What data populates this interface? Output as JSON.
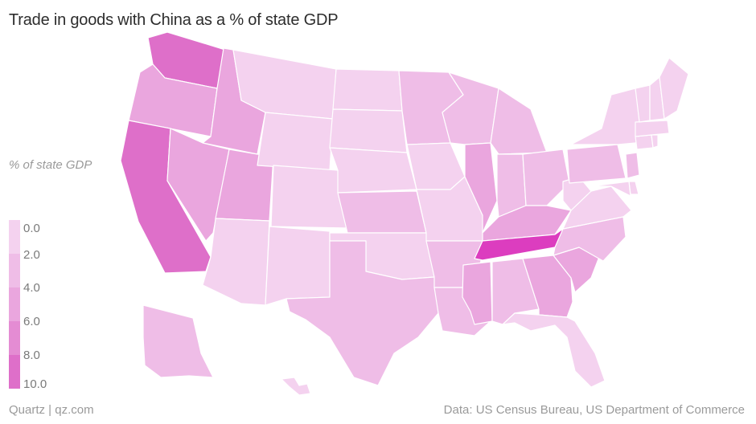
{
  "title": "Trade in goods with China as a % of state GDP",
  "legend": {
    "title": "% of state GDP",
    "ticks": [
      "0.0",
      "2.0",
      "4.0",
      "6.0",
      "8.0",
      "10.0"
    ],
    "colors": [
      "#f4d2ef",
      "#efbde7",
      "#eaa6de",
      "#e48cd3",
      "#de6fc9",
      "#dc3dbf"
    ]
  },
  "footer": {
    "source_left": "Quartz | qz.com",
    "source_right": "Data: US Census Bureau, US Department of Commerce"
  },
  "map_data": {
    "metric": "Trade in goods with China as a % of state GDP",
    "bins": [
      0,
      2,
      4,
      6,
      8,
      10
    ],
    "states": [
      {
        "code": "WA",
        "name": "Washington",
        "bin": 4
      },
      {
        "code": "OR",
        "name": "Oregon",
        "bin": 2
      },
      {
        "code": "CA",
        "name": "California",
        "bin": 4
      },
      {
        "code": "ID",
        "name": "Idaho",
        "bin": 2
      },
      {
        "code": "NV",
        "name": "Nevada",
        "bin": 2
      },
      {
        "code": "UT",
        "name": "Utah",
        "bin": 2
      },
      {
        "code": "AZ",
        "name": "Arizona",
        "bin": 0
      },
      {
        "code": "MT",
        "name": "Montana",
        "bin": 0
      },
      {
        "code": "WY",
        "name": "Wyoming",
        "bin": 0
      },
      {
        "code": "CO",
        "name": "Colorado",
        "bin": 0
      },
      {
        "code": "NM",
        "name": "New Mexico",
        "bin": 0
      },
      {
        "code": "ND",
        "name": "North Dakota",
        "bin": 0
      },
      {
        "code": "SD",
        "name": "South Dakota",
        "bin": 0
      },
      {
        "code": "NE",
        "name": "Nebraska",
        "bin": 0
      },
      {
        "code": "KS",
        "name": "Kansas",
        "bin": 1
      },
      {
        "code": "OK",
        "name": "Oklahoma",
        "bin": 0
      },
      {
        "code": "TX",
        "name": "Texas",
        "bin": 1
      },
      {
        "code": "MN",
        "name": "Minnesota",
        "bin": 1
      },
      {
        "code": "IA",
        "name": "Iowa",
        "bin": 0
      },
      {
        "code": "MO",
        "name": "Missouri",
        "bin": 0
      },
      {
        "code": "AR",
        "name": "Arkansas",
        "bin": 1
      },
      {
        "code": "LA",
        "name": "Louisiana",
        "bin": 1
      },
      {
        "code": "WI",
        "name": "Wisconsin",
        "bin": 1
      },
      {
        "code": "IL",
        "name": "Illinois",
        "bin": 2
      },
      {
        "code": "MI",
        "name": "Michigan",
        "bin": 1
      },
      {
        "code": "IN",
        "name": "Indiana",
        "bin": 1
      },
      {
        "code": "OH",
        "name": "Ohio",
        "bin": 1
      },
      {
        "code": "KY",
        "name": "Kentucky",
        "bin": 2
      },
      {
        "code": "TN",
        "name": "Tennessee",
        "bin": 5
      },
      {
        "code": "MS",
        "name": "Mississippi",
        "bin": 2
      },
      {
        "code": "AL",
        "name": "Alabama",
        "bin": 1
      },
      {
        "code": "GA",
        "name": "Georgia",
        "bin": 2
      },
      {
        "code": "FL",
        "name": "Florida",
        "bin": 0
      },
      {
        "code": "SC",
        "name": "South Carolina",
        "bin": 2
      },
      {
        "code": "NC",
        "name": "North Carolina",
        "bin": 1
      },
      {
        "code": "VA",
        "name": "Virginia",
        "bin": 0
      },
      {
        "code": "WV",
        "name": "West Virginia",
        "bin": 0
      },
      {
        "code": "PA",
        "name": "Pennsylvania",
        "bin": 1
      },
      {
        "code": "NY",
        "name": "New York",
        "bin": 0
      },
      {
        "code": "NJ",
        "name": "New Jersey",
        "bin": 1
      },
      {
        "code": "DE",
        "name": "Delaware",
        "bin": 0
      },
      {
        "code": "MD",
        "name": "Maryland",
        "bin": 0
      },
      {
        "code": "CT",
        "name": "Connecticut",
        "bin": 0
      },
      {
        "code": "RI",
        "name": "Rhode Island",
        "bin": 0
      },
      {
        "code": "MA",
        "name": "Massachusetts",
        "bin": 0
      },
      {
        "code": "VT",
        "name": "Vermont",
        "bin": 0
      },
      {
        "code": "NH",
        "name": "New Hampshire",
        "bin": 0
      },
      {
        "code": "ME",
        "name": "Maine",
        "bin": 0
      },
      {
        "code": "AK",
        "name": "Alaska",
        "bin": 1
      },
      {
        "code": "HI",
        "name": "Hawaii",
        "bin": 0
      }
    ]
  }
}
